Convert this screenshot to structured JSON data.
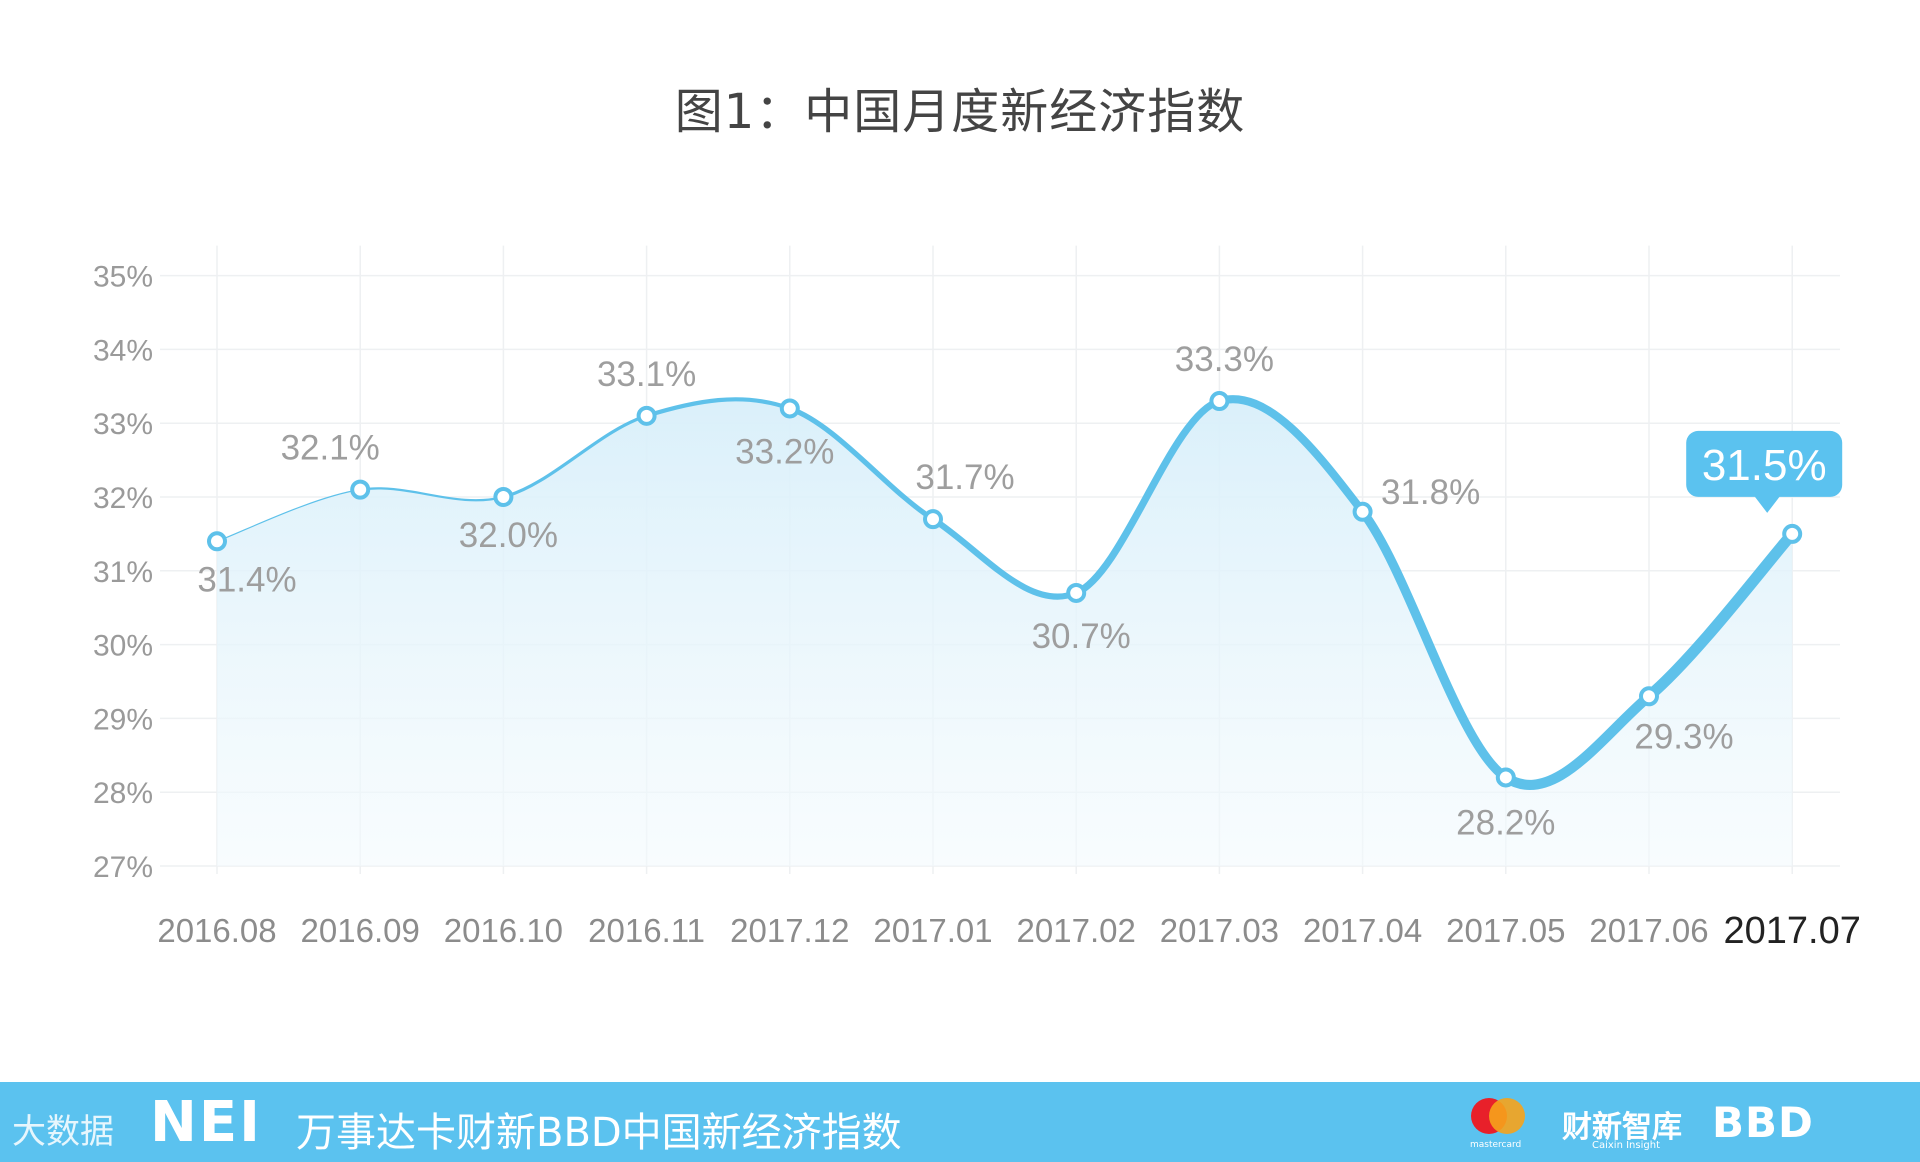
{
  "chart_data": {
    "type": "line",
    "title": "图1：中国月度新经济指数",
    "xlabel": "",
    "ylabel": "",
    "categories": [
      "2016.08",
      "2016.09",
      "2016.10",
      "2016.11",
      "2017.12",
      "2017.01",
      "2017.02",
      "2017.03",
      "2017.04",
      "2017.05",
      "2017.06",
      "2017.07"
    ],
    "values": [
      31.4,
      32.1,
      32.0,
      33.1,
      33.2,
      31.7,
      30.7,
      33.3,
      31.8,
      28.2,
      29.3,
      31.5
    ],
    "data_labels": [
      "31.4%",
      "32.1%",
      "32.0%",
      "33.1%",
      "33.2%",
      "31.7%",
      "30.7%",
      "33.3%",
      "31.8%",
      "28.2%",
      "29.3%",
      "31.5%"
    ],
    "ylim": [
      27,
      35
    ],
    "yticks": [
      "27%",
      "28%",
      "29%",
      "30%",
      "31%",
      "32%",
      "33%",
      "34%",
      "35%"
    ],
    "grid": true,
    "highlight_label": "31.5%",
    "line_color": "#5ec1ea",
    "fill_color": "#dff2fb"
  },
  "footer": {
    "logo": "NEI",
    "title": "万事达卡财新BBD中国新经济指数",
    "watermark": "大数据",
    "mastercard_word": "mastercard",
    "caixin": "财新智库",
    "caixin_sub": "Caixin Insight",
    "bbd": "BBD",
    "background": "#5bc2ef"
  }
}
